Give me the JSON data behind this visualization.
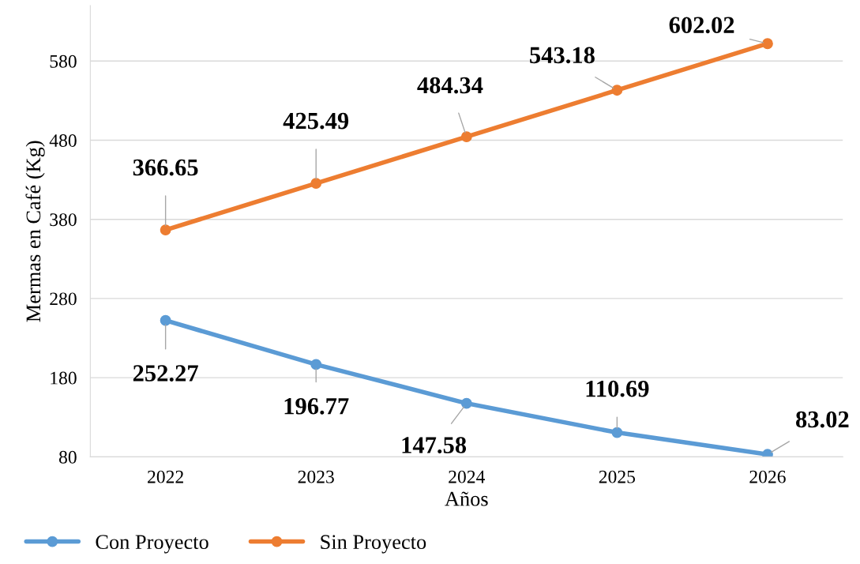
{
  "chart_data": {
    "type": "line",
    "xlabel": "Años",
    "ylabel": "Mermas en Café (Kg)",
    "categories": [
      "2022",
      "2023",
      "2024",
      "2025",
      "2026"
    ],
    "series": [
      {
        "name": "Con Proyecto",
        "color": "#5b9bd5",
        "values": [
          252.27,
          196.77,
          147.58,
          110.69,
          83.02
        ]
      },
      {
        "name": "Sin Proyecto",
        "color": "#ed7d31",
        "values": [
          366.65,
          425.49,
          484.34,
          543.18,
          602.02
        ]
      }
    ],
    "ylim": [
      80,
      650
    ],
    "yticks": [
      80,
      180,
      280,
      380,
      480,
      580
    ],
    "grid": "y",
    "legend": "bottom",
    "marker": "circle",
    "line_style": "solid",
    "data_labels": true
  }
}
